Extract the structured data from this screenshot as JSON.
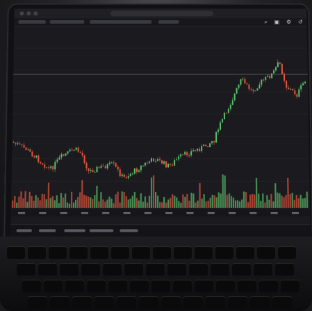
{
  "scene": "photo",
  "colors": {
    "bull": "#58c06a",
    "bear": "#e4573d",
    "priceLine": "#9fb8a0",
    "grid": "#2a2a30"
  },
  "icons": [
    "search-icon",
    "gear-icon",
    "publish-icon",
    "undo-icon"
  ]
}
